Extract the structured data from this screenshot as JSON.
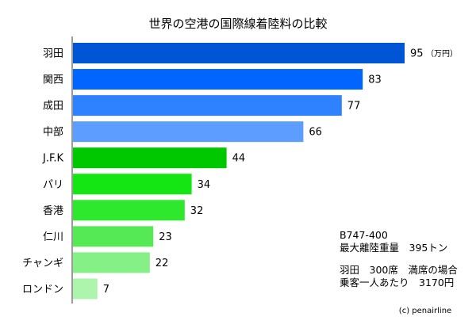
{
  "chart_data": {
    "type": "bar",
    "orientation": "horizontal",
    "title": "世界の空港の国際線着陸料の比較",
    "categories": [
      "羽田",
      "関西",
      "成田",
      "中部",
      "J.F.K",
      "パリ",
      "香港",
      "仁川",
      "チャンギ",
      "ロンドン"
    ],
    "values": [
      95,
      83,
      77,
      66,
      44,
      34,
      32,
      23,
      22,
      7
    ],
    "value_labels": [
      "95",
      "83",
      "77",
      "66",
      "44",
      "34",
      "32",
      "23",
      "22",
      "7"
    ],
    "unit_label": "（万円）",
    "xlim": [
      0,
      100
    ],
    "grid": false,
    "legend": "none",
    "bar_colors": [
      "#0055d4",
      "#0066ff",
      "#2f82ff",
      "#5c9dff",
      "#00c800",
      "#14e614",
      "#2ee82e",
      "#55ea55",
      "#85f085",
      "#adf5ad"
    ],
    "annotations": {
      "aircraft_line1": "B747-400",
      "aircraft_line2": "最大離陸重量　395トン",
      "condition_line1": "羽田　300席　満席の場合",
      "condition_line2": "乗客一人あたり　3170円"
    }
  },
  "credit": "(c) penairline",
  "colors": {
    "axis": "#9a9a9a"
  }
}
